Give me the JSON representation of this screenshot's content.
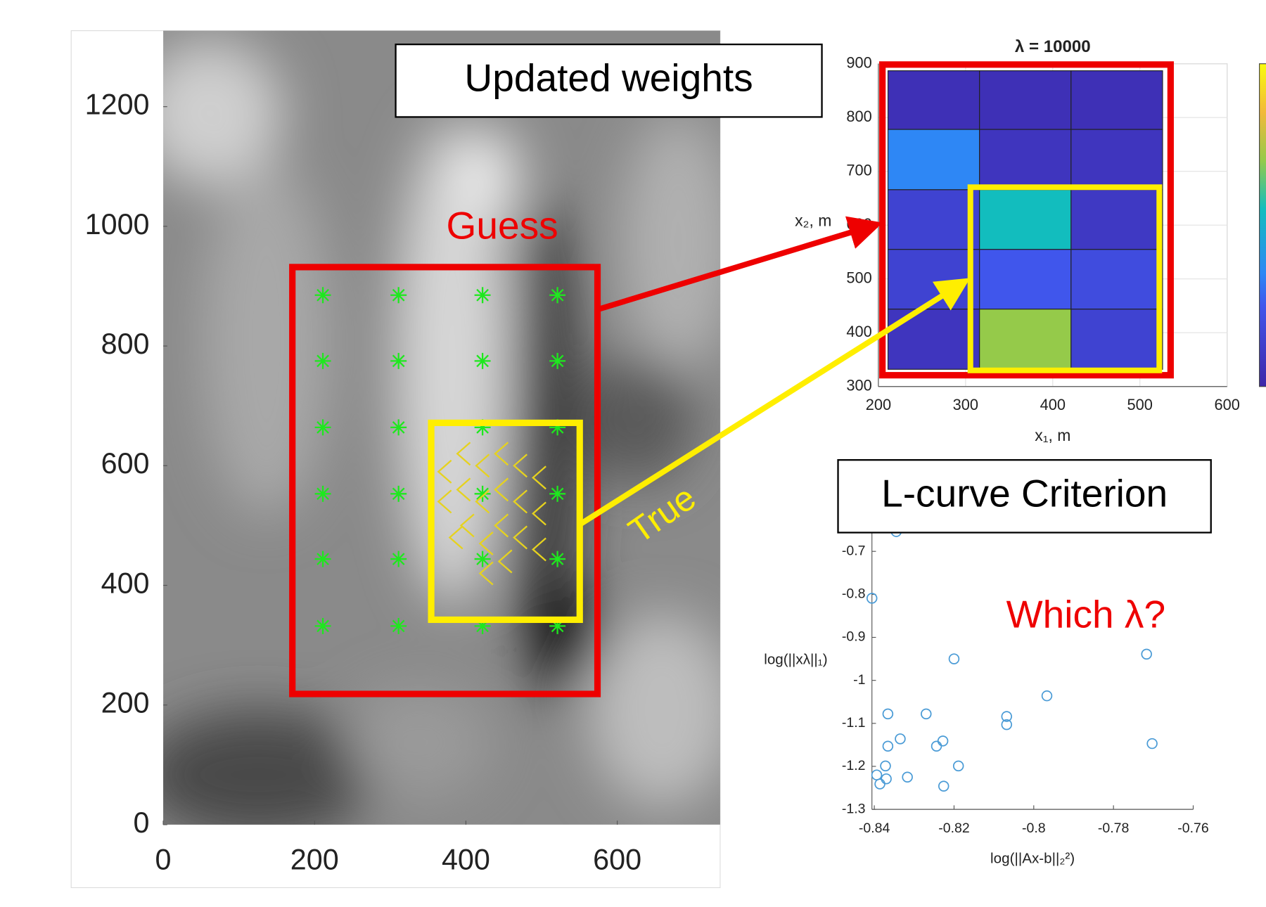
{
  "chart_data": [
    {
      "type": "scatter",
      "xlim": [
        0,
        736
      ],
      "ylim": [
        0,
        1327
      ],
      "xticks": [
        0,
        200,
        400,
        600
      ],
      "yticks": [
        0,
        200,
        400,
        600,
        800,
        1000,
        1200
      ],
      "annotations": [
        "Guess",
        "True"
      ],
      "series": [
        {
          "color": "#1ee81e",
          "marker": "asterisk",
          "x": [
            211,
            311,
            422,
            521,
            211,
            311,
            422,
            521,
            211,
            311,
            422,
            521,
            211,
            311,
            422,
            521,
            211,
            311,
            422,
            521,
            211,
            311,
            422,
            521
          ],
          "values": [
            885,
            885,
            885,
            885,
            775,
            775,
            775,
            775,
            664,
            664,
            664,
            664,
            553,
            553,
            553,
            553,
            444,
            444,
            444,
            444,
            332,
            332,
            332,
            332
          ]
        },
        {
          "color": "#e6d21e",
          "marker": "chevron",
          "x": [
            370,
            370,
            385,
            395,
            395,
            400,
            420,
            420,
            425,
            425,
            445,
            445,
            445,
            450,
            470,
            470,
            470,
            495,
            495,
            495
          ],
          "values": [
            590,
            540,
            480,
            620,
            560,
            500,
            600,
            540,
            470,
            420,
            620,
            560,
            500,
            440,
            600,
            540,
            480,
            580,
            520,
            460
          ]
        }
      ]
    },
    {
      "type": "heatmap",
      "title": "λ = 10000",
      "xlabel": "x₁, m",
      "ylabel": "x₂, m",
      "annotation": "Updated weights",
      "xlim": [
        200,
        600
      ],
      "ylim": [
        300,
        900
      ],
      "xticks": [
        200,
        300,
        400,
        500,
        600
      ],
      "yticks": [
        300,
        400,
        500,
        600,
        700,
        800,
        900
      ],
      "grid": true,
      "colormap": "parula",
      "clim": [
        0,
        1
      ],
      "x_edges": [
        211,
        316,
        421,
        526
      ],
      "y_edges": [
        332,
        444,
        555,
        666,
        778,
        887
      ],
      "values": [
        [
          0.08,
          0.7,
          0.15
        ],
        [
          0.15,
          0.25,
          0.2
        ],
        [
          0.15,
          0.55,
          0.1
        ],
        [
          0.35,
          0.08,
          0.08
        ],
        [
          0.05,
          0.05,
          0.05
        ]
      ]
    },
    {
      "type": "scatter",
      "xlabel": "log(||Ax-b||₂²)",
      "ylabel": "log(||xλ||₁)",
      "annotations": [
        "L-curve Criterion",
        "Which λ?"
      ],
      "xlim": [
        -0.8406,
        -0.76
      ],
      "ylim": [
        -1.3,
        -0.6
      ],
      "xticks": [
        -0.84,
        -0.82,
        -0.8,
        -0.78,
        -0.76
      ],
      "yticks": [
        -1.3,
        -1.2,
        -1.1,
        -1,
        -0.9,
        -0.8,
        -0.7
      ],
      "series": [
        {
          "color": "#4a9bd6",
          "marker": "circle",
          "x": [
            -0.8345,
            -0.8406,
            -0.82,
            -0.7717,
            -0.7967,
            -0.8366,
            -0.827,
            -0.8068,
            -0.8068,
            -0.8335,
            -0.8366,
            -0.8228,
            -0.8244,
            -0.8372,
            -0.8189,
            -0.7703,
            -0.8394,
            -0.837,
            -0.8386,
            -0.8317,
            -0.8226
          ],
          "values": [
            -0.654,
            -0.809,
            -0.95,
            -0.939,
            -1.036,
            -1.078,
            -1.078,
            -1.084,
            -1.103,
            -1.136,
            -1.153,
            -1.141,
            -1.153,
            -1.199,
            -1.199,
            -1.147,
            -1.22,
            -1.229,
            -1.241,
            -1.225,
            -1.246
          ]
        }
      ]
    }
  ]
}
